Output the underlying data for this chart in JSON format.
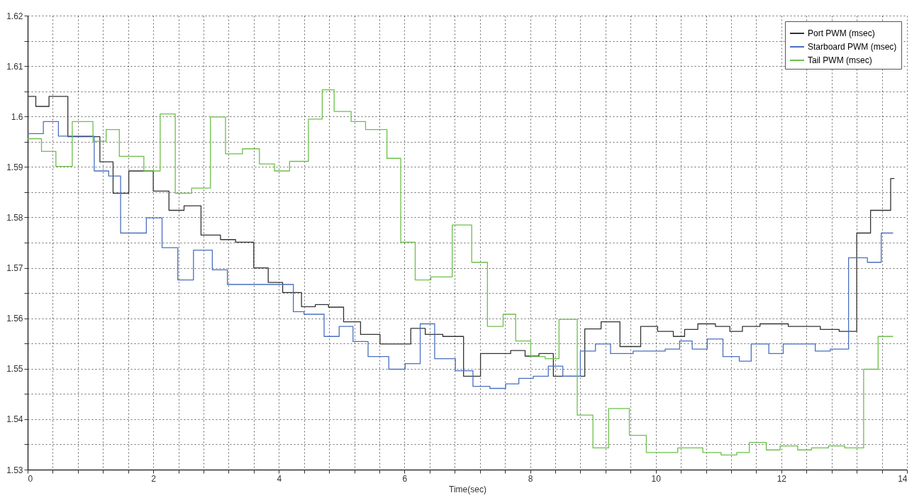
{
  "chart_data": {
    "type": "step",
    "xlabel": "Time(sec)",
    "legend": "top right",
    "grid": true,
    "xlim": [
      0,
      14
    ],
    "ylim": [
      1.53,
      1.62
    ],
    "xticks": [
      0,
      {
        "value": 0.4,
        "label": null
      },
      {
        "value": 0.8,
        "label": null
      },
      {
        "value": 1.2,
        "label": null
      },
      {
        "value": 1.6,
        "label": null
      },
      2,
      {
        "value": 2.4,
        "label": null
      },
      {
        "value": 2.8,
        "label": null
      },
      {
        "value": 3.2,
        "label": null
      },
      {
        "value": 3.6,
        "label": null
      },
      4,
      {
        "value": 4.4,
        "label": null
      },
      {
        "value": 4.8,
        "label": null
      },
      {
        "value": 5.2,
        "label": null
      },
      {
        "value": 5.6,
        "label": null
      },
      6,
      {
        "value": 6.4,
        "label": null
      },
      {
        "value": 6.8,
        "label": null
      },
      {
        "value": 7.2,
        "label": null
      },
      {
        "value": 7.6,
        "label": null
      },
      8,
      {
        "value": 8.4,
        "label": null
      },
      {
        "value": 8.8,
        "label": null
      },
      {
        "value": 9.2,
        "label": null
      },
      {
        "value": 9.6,
        "label": null
      },
      10,
      {
        "value": 10.4,
        "label": null
      },
      {
        "value": 10.8,
        "label": null
      },
      {
        "value": 11.2,
        "label": null
      },
      {
        "value": 11.6,
        "label": null
      },
      12,
      {
        "value": 12.4,
        "label": null
      },
      {
        "value": 12.8,
        "label": null
      },
      {
        "value": 13.2,
        "label": null
      },
      {
        "value": 13.6,
        "label": null
      },
      14
    ],
    "yticks": [
      1.53,
      {
        "value": 1.535,
        "label": null
      },
      1.54,
      {
        "value": 1.545,
        "label": null
      },
      1.55,
      {
        "value": 1.555,
        "label": null
      },
      1.56,
      {
        "value": 1.565,
        "label": null
      },
      1.57,
      {
        "value": 1.575,
        "label": null
      },
      1.58,
      {
        "value": 1.585,
        "label": null
      },
      1.59,
      {
        "value": 1.595,
        "label": null
      },
      1.6,
      {
        "value": 1.605,
        "label": null
      },
      1.61,
      {
        "value": 1.615,
        "label": null
      },
      1.62
    ],
    "series": [
      {
        "name": "Port PWM (msec)",
        "color": "#333333",
        "x": [
          0,
          0.13,
          0.34,
          0.64,
          1.15,
          1.36,
          1.61,
          2.0,
          2.25,
          2.49,
          2.76,
          3.07,
          3.31,
          3.6,
          3.83,
          4.06,
          4.36,
          4.58,
          4.79,
          5.03,
          5.3,
          5.61,
          6.1,
          6.33,
          6.61,
          6.94,
          7.21,
          7.69,
          7.92,
          8.14,
          8.37,
          8.87,
          9.13,
          9.43,
          9.76,
          10.03,
          10.28,
          10.46,
          10.67,
          10.95,
          11.18,
          11.38,
          11.66,
          12.11,
          12.62,
          12.92,
          13.2,
          13.42,
          13.74,
          13.8
        ],
        "values": [
          1.604,
          1.602,
          1.604,
          1.596,
          1.591,
          1.5848,
          1.5892,
          1.5852,
          1.5814,
          1.5823,
          1.5765,
          1.5756,
          1.5751,
          1.57,
          1.5671,
          1.5651,
          1.5623,
          1.5627,
          1.5622,
          1.5593,
          1.5568,
          1.5549,
          1.558,
          1.5568,
          1.5564,
          1.5485,
          1.553,
          1.5536,
          1.5525,
          1.553,
          1.5485,
          1.5579,
          1.5593,
          1.5544,
          1.5584,
          1.5574,
          1.5564,
          1.5578,
          1.5589,
          1.5584,
          1.5574,
          1.5584,
          1.5589,
          1.5584,
          1.5578,
          1.5574,
          1.5769,
          1.5814,
          1.5877,
          1.5877
        ]
      },
      {
        "name": "Starboard PWM (msec)",
        "color": "#4a6fc0",
        "x": [
          0,
          0.25,
          0.49,
          1.06,
          1.29,
          1.48,
          1.89,
          2.14,
          2.39,
          2.64,
          2.94,
          3.18,
          4.23,
          4.4,
          4.72,
          4.96,
          5.18,
          5.42,
          5.75,
          6.01,
          6.25,
          6.48,
          6.81,
          7.09,
          7.36,
          7.61,
          7.82,
          8.05,
          8.29,
          8.52,
          8.8,
          9.04,
          9.28,
          9.64,
          10.15,
          10.38,
          10.58,
          10.82,
          11.07,
          11.33,
          11.52,
          11.8,
          12.03,
          12.54,
          12.78,
          13.07,
          13.37,
          13.59,
          13.78
        ],
        "values": [
          1.5966,
          1.599,
          1.5961,
          1.5892,
          1.5882,
          1.5769,
          1.5799,
          1.574,
          1.5676,
          1.5735,
          1.5696,
          1.5667,
          1.5613,
          1.5608,
          1.5564,
          1.5584,
          1.5554,
          1.5524,
          1.5499,
          1.551,
          1.5589,
          1.552,
          1.5496,
          1.5465,
          1.5461,
          1.547,
          1.5481,
          1.5485,
          1.5505,
          1.5485,
          1.5535,
          1.5549,
          1.553,
          1.5535,
          1.5539,
          1.5555,
          1.5539,
          1.5559,
          1.5524,
          1.5515,
          1.5549,
          1.553,
          1.5549,
          1.5535,
          1.5539,
          1.572,
          1.5711,
          1.5769,
          1.5769
        ]
      },
      {
        "name": "Tail PWM (msec)",
        "color": "#6cc04a",
        "x": [
          0,
          0.22,
          0.45,
          0.71,
          1.04,
          1.25,
          1.46,
          1.85,
          2.11,
          2.35,
          2.61,
          2.91,
          3.15,
          3.42,
          3.69,
          3.93,
          4.17,
          4.47,
          4.69,
          4.88,
          5.15,
          5.38,
          5.72,
          5.94,
          6.17,
          6.42,
          6.76,
          7.07,
          7.32,
          7.57,
          7.77,
          8.01,
          8.24,
          8.46,
          8.75,
          9.0,
          9.25,
          9.58,
          9.85,
          10.35,
          10.75,
          11.04,
          11.29,
          11.49,
          11.76,
          11.98,
          12.26,
          12.48,
          12.75,
          13.01,
          13.31,
          13.54,
          13.78
        ],
        "values": [
          1.5956,
          1.5931,
          1.5901,
          1.599,
          1.5951,
          1.5974,
          1.5921,
          1.5892,
          1.6005,
          1.5848,
          1.5858,
          1.5999,
          1.5926,
          1.5936,
          1.5906,
          1.5892,
          1.5911,
          1.5995,
          1.6053,
          1.601,
          1.599,
          1.5974,
          1.5917,
          1.5751,
          1.5676,
          1.5682,
          1.5785,
          1.5711,
          1.5584,
          1.5608,
          1.5555,
          1.5524,
          1.552,
          1.5598,
          1.5408,
          1.5343,
          1.5421,
          1.5368,
          1.5334,
          1.5343,
          1.5334,
          1.5329,
          1.5334,
          1.5354,
          1.5339,
          1.5347,
          1.5339,
          1.5343,
          1.5347,
          1.5343,
          1.5499,
          1.5564,
          1.5564
        ]
      }
    ]
  }
}
